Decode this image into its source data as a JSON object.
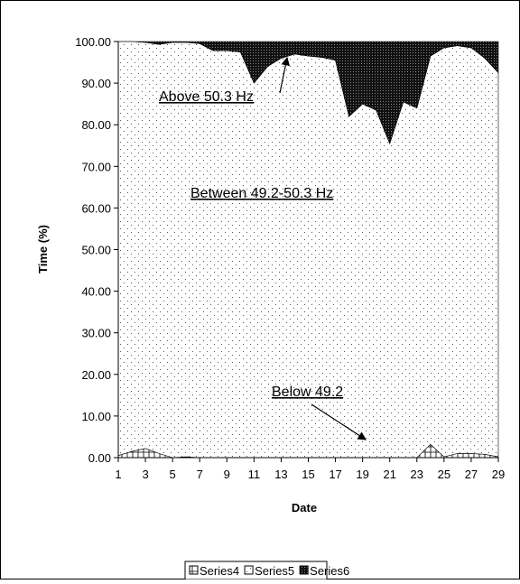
{
  "chart_data": {
    "type": "stacked-area",
    "x": [
      1,
      2,
      3,
      4,
      5,
      6,
      7,
      8,
      9,
      10,
      11,
      12,
      13,
      14,
      15,
      16,
      17,
      18,
      19,
      20,
      21,
      22,
      23,
      24,
      25,
      26,
      27,
      28,
      29
    ],
    "xlabel": "Date",
    "ylabel": "Time (%)",
    "xlim": [
      1,
      29
    ],
    "xticks": [
      1,
      3,
      5,
      7,
      9,
      11,
      13,
      15,
      17,
      19,
      21,
      23,
      25,
      27,
      29
    ],
    "ylim": [
      0,
      100
    ],
    "yticks": [
      {
        "value": 0,
        "label": "0.00"
      },
      {
        "value": 10,
        "label": "10.00"
      },
      {
        "value": 20,
        "label": "20.00"
      },
      {
        "value": 30,
        "label": "30.00"
      },
      {
        "value": 40,
        "label": "40.00"
      },
      {
        "value": 50,
        "label": "50.00"
      },
      {
        "value": 60,
        "label": "60.00"
      },
      {
        "value": 70,
        "label": "70.00"
      },
      {
        "value": 80,
        "label": "80.00"
      },
      {
        "value": 90,
        "label": "90.00"
      },
      {
        "value": 100,
        "label": "100.00"
      }
    ],
    "series": [
      {
        "name": "Series4",
        "values": [
          0.5,
          1.5,
          2.2,
          1.0,
          0,
          0.2,
          0,
          0,
          0,
          0,
          0,
          0,
          0,
          0,
          0,
          0,
          0,
          0,
          0,
          0,
          0,
          0,
          0,
          3.2,
          0.2,
          1.0,
          1.0,
          0.8,
          0.2
        ]
      },
      {
        "name": "Series5",
        "values": [
          99.5,
          98.5,
          97.6,
          98.3,
          99.8,
          99.6,
          99.5,
          97.8,
          97.8,
          97.5,
          90,
          94,
          96,
          97,
          96.5,
          96.2,
          95.5,
          82,
          85,
          83.5,
          75.5,
          85.5,
          84,
          93.3,
          98.3,
          98,
          97.5,
          95.2,
          92.3
        ]
      },
      {
        "name": "Series6",
        "values": [
          0,
          0,
          0.2,
          0.7,
          0.2,
          0.2,
          0.5,
          2.2,
          2.2,
          2.5,
          10,
          6,
          4,
          3,
          3.5,
          3.8,
          4.5,
          18,
          15,
          16.5,
          24.5,
          14.5,
          16,
          3.5,
          1.5,
          1,
          1.5,
          4,
          7.5
        ]
      }
    ],
    "annotations": [
      {
        "text": "Above 50.3 Hz"
      },
      {
        "text": "Between 49.2-50.3 Hz"
      },
      {
        "text": "Below 49.2"
      }
    ]
  }
}
